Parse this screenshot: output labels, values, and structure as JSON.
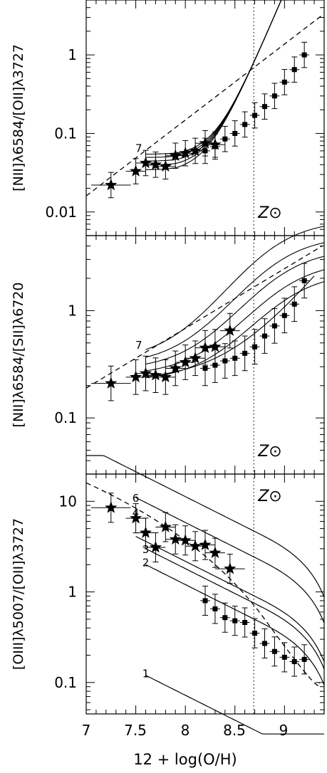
{
  "figure": {
    "xlabel": "12 + log(O/H)",
    "x_ticks": [
      "7",
      "7.5",
      "8",
      "8.5",
      "9"
    ],
    "solar_label": "Z⊙"
  },
  "chart_data": [
    {
      "type": "scatter",
      "ylabel": "[NII]λ6584/[OII]λ3727",
      "xlim": [
        7.0,
        9.4
      ],
      "ylim": [
        0.005,
        5.0
      ],
      "yscale": "log",
      "y_ticks": [
        "0.01",
        "0.1",
        "1"
      ],
      "y_tick_values": [
        0.01,
        0.1,
        1
      ],
      "solar_x": 8.69,
      "curve_label": "7",
      "series": [
        {
          "marker": "star",
          "x": [
            7.25,
            7.5,
            7.6,
            7.7,
            7.8,
            7.9,
            8.0,
            8.1,
            8.2,
            8.3
          ],
          "y": [
            0.022,
            0.033,
            0.042,
            0.04,
            0.038,
            0.052,
            0.056,
            0.06,
            0.075,
            0.072
          ],
          "xerr": [
            0.2,
            0.1,
            0.1,
            0.1,
            0.1,
            0.1,
            0.1,
            0.1,
            0.1,
            0.1
          ]
        },
        {
          "marker": "square",
          "x": [
            8.2,
            8.3,
            8.4,
            8.5,
            8.6,
            8.7,
            8.8,
            8.9,
            9.0,
            9.1,
            9.2
          ],
          "y": [
            0.06,
            0.068,
            0.085,
            0.1,
            0.13,
            0.17,
            0.22,
            0.3,
            0.45,
            0.65,
            1.0
          ],
          "xerr": [
            0.05,
            0.05,
            0.05,
            0.05,
            0.05,
            0.05,
            0.05,
            0.05,
            0.05,
            0.05,
            0.05
          ]
        }
      ]
    },
    {
      "type": "scatter",
      "ylabel": "[NII]λ6584/[SII]λ6720",
      "xlim": [
        7.0,
        9.4
      ],
      "ylim": [
        0.03,
        5.0
      ],
      "yscale": "log",
      "y_ticks": [
        "0.1",
        "1"
      ],
      "y_tick_values": [
        0.1,
        1
      ],
      "solar_x": 8.69,
      "curve_label": "7",
      "series": [
        {
          "marker": "star",
          "x": [
            7.25,
            7.5,
            7.6,
            7.7,
            7.8,
            7.9,
            8.0,
            8.1,
            8.2,
            8.3,
            8.45
          ],
          "y": [
            0.21,
            0.24,
            0.26,
            0.25,
            0.24,
            0.29,
            0.33,
            0.36,
            0.45,
            0.46,
            0.65
          ],
          "xerr": [
            0.2,
            0.1,
            0.1,
            0.1,
            0.1,
            0.1,
            0.1,
            0.1,
            0.1,
            0.1,
            0.1
          ]
        },
        {
          "marker": "square",
          "x": [
            8.2,
            8.3,
            8.4,
            8.5,
            8.6,
            8.7,
            8.8,
            8.9,
            9.0,
            9.1,
            9.2
          ],
          "y": [
            0.29,
            0.31,
            0.34,
            0.36,
            0.4,
            0.46,
            0.58,
            0.72,
            0.9,
            1.15,
            1.9
          ],
          "xerr": [
            0.05,
            0.05,
            0.05,
            0.05,
            0.05,
            0.05,
            0.05,
            0.05,
            0.05,
            0.05,
            0.05
          ]
        }
      ]
    },
    {
      "type": "scatter",
      "ylabel": "[OIII]λ5007/[OII]λ3727",
      "xlim": [
        7.0,
        9.4
      ],
      "ylim": [
        0.045,
        20.0
      ],
      "yscale": "log",
      "y_ticks": [
        "0.1",
        "1",
        "10"
      ],
      "y_tick_values": [
        0.1,
        1,
        10
      ],
      "solar_x": 8.69,
      "curve_labels": [
        "6",
        "4",
        "3",
        "2",
        "1"
      ],
      "series": [
        {
          "marker": "star",
          "x": [
            7.25,
            7.5,
            7.6,
            7.7,
            7.8,
            7.9,
            8.0,
            8.1,
            8.2,
            8.3,
            8.45
          ],
          "y": [
            8.5,
            6.5,
            4.5,
            3.1,
            5.2,
            3.8,
            3.7,
            3.2,
            3.3,
            2.7,
            1.8
          ],
          "xerr": [
            0.2,
            0.1,
            0.1,
            0.1,
            0.1,
            0.1,
            0.1,
            0.1,
            0.1,
            0.1,
            0.15
          ]
        },
        {
          "marker": "square",
          "x": [
            8.2,
            8.3,
            8.4,
            8.5,
            8.6,
            8.7,
            8.8,
            8.9,
            9.0,
            9.1,
            9.2
          ],
          "y": [
            0.8,
            0.65,
            0.52,
            0.48,
            0.46,
            0.35,
            0.27,
            0.22,
            0.19,
            0.17,
            0.18
          ],
          "xerr": [
            0.05,
            0.05,
            0.05,
            0.05,
            0.05,
            0.05,
            0.05,
            0.05,
            0.05,
            0.05,
            0.05
          ]
        }
      ]
    }
  ]
}
